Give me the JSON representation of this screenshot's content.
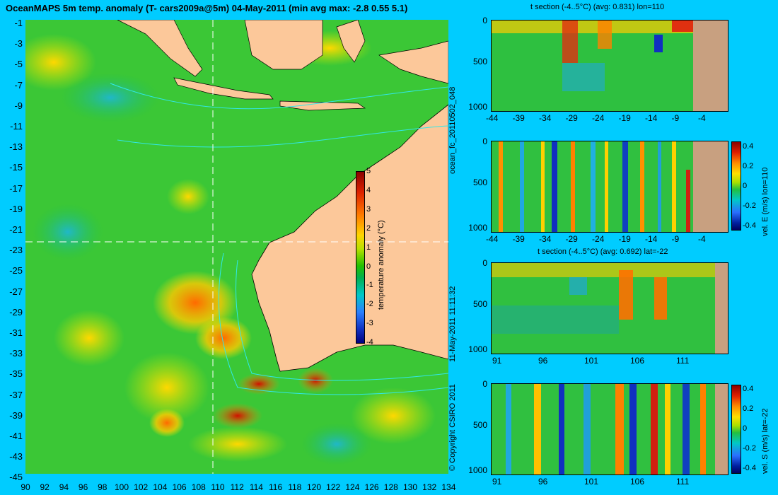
{
  "title": "OceanMAPS 5m temp. anomaly (T- cars2009a@5m) 04-May-2011 (min avg max: -2.8 0.55 5.1)",
  "map": {
    "lat_labels": [
      "-1",
      "-3",
      "-5",
      "-7",
      "-9",
      "-11",
      "-13",
      "-15",
      "-17",
      "-19",
      "-21",
      "-23",
      "-25",
      "-27",
      "-29",
      "-31",
      "-33",
      "-35",
      "-37",
      "-39",
      "-41",
      "-43",
      "-45"
    ],
    "lon_labels": [
      "90",
      "92",
      "94",
      "96",
      "98",
      "100",
      "102",
      "104",
      "106",
      "108",
      "110",
      "112",
      "114",
      "116",
      "118",
      "120",
      "122",
      "124",
      "126",
      "128",
      "130",
      "132",
      "134"
    ],
    "colorbar": {
      "label": "temperature anomaly (°C)",
      "ticks": [
        "5",
        "4",
        "3",
        "2",
        "1",
        "0",
        "-1",
        "-2",
        "-3",
        "-4"
      ]
    }
  },
  "side_text": {
    "run": "ocean_fc_20110502_048",
    "timestamp": "11-May-2011 11:11:32",
    "copyright": "© Copyright CSIRO 2011"
  },
  "panels": [
    {
      "title": "t section (-4..5°C) (avg: 0.831) lon=110",
      "x_labels": [
        "-44",
        "-39",
        "-34",
        "-29",
        "-24",
        "-19",
        "-14",
        "-9",
        "-4"
      ],
      "y_labels": [
        "0",
        "500",
        "1000"
      ]
    },
    {
      "title": "",
      "x_labels": [
        "-44",
        "-39",
        "-34",
        "-29",
        "-24",
        "-19",
        "-14",
        "-9",
        "-4"
      ],
      "y_labels": [
        "0",
        "500",
        "1000"
      ],
      "colorbar_label": "vel. E (m/s) lon=110",
      "cb_ticks": [
        "0.4",
        "0.2",
        "0",
        "-0.2",
        "-0.4"
      ]
    },
    {
      "title": "t section (-4..5°C) (avg: 0.692) lat=-22",
      "x_labels": [
        "91",
        "96",
        "101",
        "106",
        "111"
      ],
      "y_labels": [
        "0",
        "500",
        "1000"
      ]
    },
    {
      "title": "",
      "x_labels": [
        "91",
        "96",
        "101",
        "106",
        "111"
      ],
      "y_labels": [
        "0",
        "500",
        "1000"
      ],
      "colorbar_label": "vel. S (m/s) lat=-22",
      "cb_ticks": [
        "0.4",
        "0.2",
        "0",
        "-0.2",
        "-0.4"
      ]
    }
  ],
  "colors": {
    "background": "#00ccff",
    "land": "#fcc89a",
    "section_land": "#c8a080"
  }
}
